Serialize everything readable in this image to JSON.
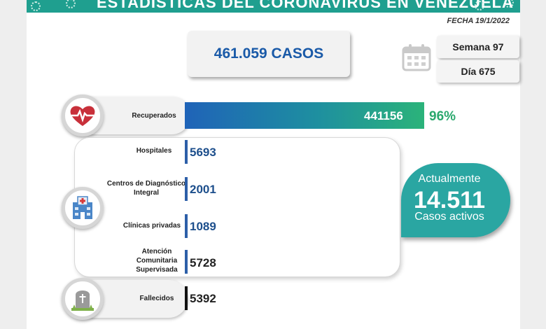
{
  "banner": {
    "title": "ESTADÍSTICAS DEL CORONAVIRUS EN VENEZUELA"
  },
  "fecha": "FECHA 19/1/2022",
  "casos": "461.059 CASOS",
  "semana": "Semana 97",
  "dia": "Día 675",
  "recuperados": {
    "label": "Recuperados",
    "value": "441156",
    "percent": "96%",
    "icon": "heart-pulse-icon",
    "color": "#2bb37a"
  },
  "hospitalizacion": {
    "icon": "hospital-icon",
    "rows": [
      {
        "label": "Hospitales",
        "value": "5693",
        "bar_color": "#2d5fa8"
      },
      {
        "label": "Centros de Diagnóstico Integral",
        "value": "2001",
        "bar_color": "#2d5fa8"
      },
      {
        "label": "Clínicas privadas",
        "value": "1089",
        "bar_color": "#2d5fa8"
      },
      {
        "label": "Atención Comunitaria Supervisada",
        "value": "5728",
        "bar_color": "#2d5fa8"
      }
    ]
  },
  "activos": {
    "line1": "Actualmente",
    "number": "14.511",
    "line2": "Casos activos",
    "color": "#2aa6a2"
  },
  "fallecidos": {
    "label": "Fallecidos",
    "value": "5392",
    "icon": "tombstone-icon",
    "bar_color": "#111111"
  },
  "calendar_icon": "calendar-icon"
}
